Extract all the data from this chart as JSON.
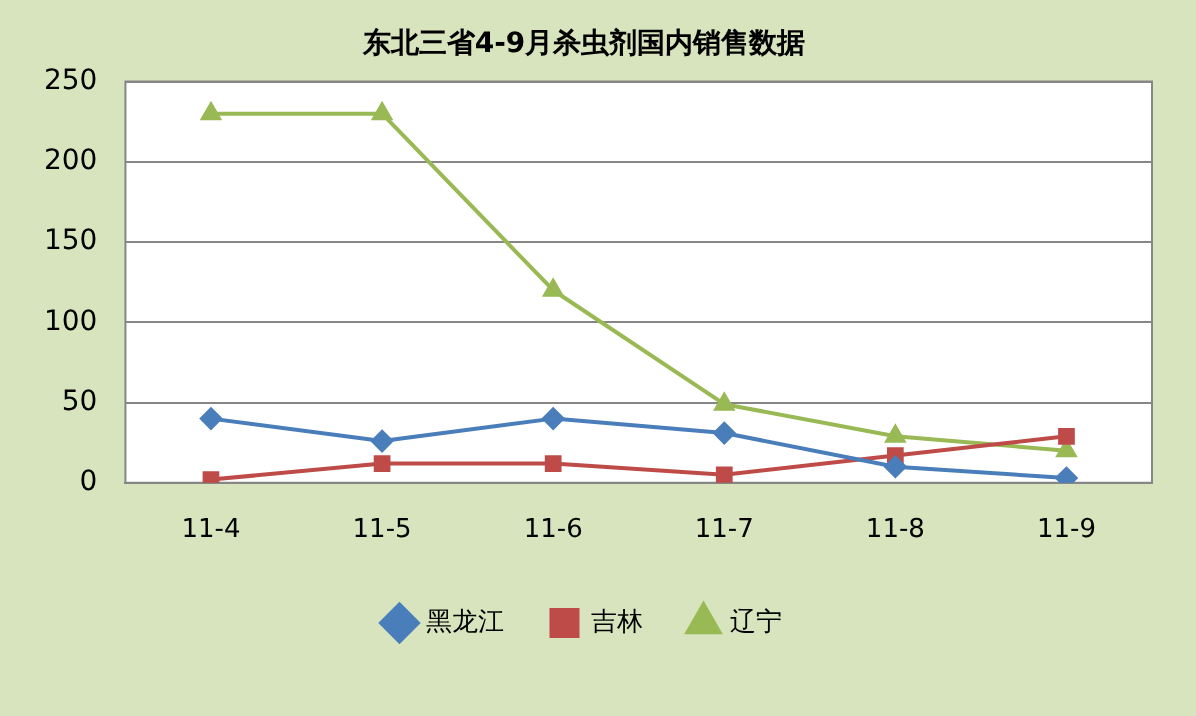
{
  "chart_data": {
    "type": "line",
    "title": "东北三省4-9月杀虫剂国内销售数据",
    "categories": [
      "11-4",
      "11-5",
      "11-6",
      "11-7",
      "11-8",
      "11-9"
    ],
    "series": [
      {
        "name": "黑龙江",
        "color": "#4a7ebb",
        "values": [
          40,
          26,
          40,
          31,
          10,
          3
        ],
        "marker": "diamond"
      },
      {
        "name": "吉林",
        "color": "#be4b48",
        "values": [
          2,
          12,
          12,
          5,
          17,
          29
        ],
        "marker": "square"
      },
      {
        "name": "辽宁",
        "color": "#98b954",
        "values": [
          230,
          230,
          120,
          49,
          29,
          20
        ],
        "marker": "triangle"
      }
    ],
    "ylim": [
      0,
      250
    ],
    "yticks": [
      0,
      50,
      100,
      150,
      200,
      250
    ],
    "grid": "y",
    "legend": "bottom"
  }
}
